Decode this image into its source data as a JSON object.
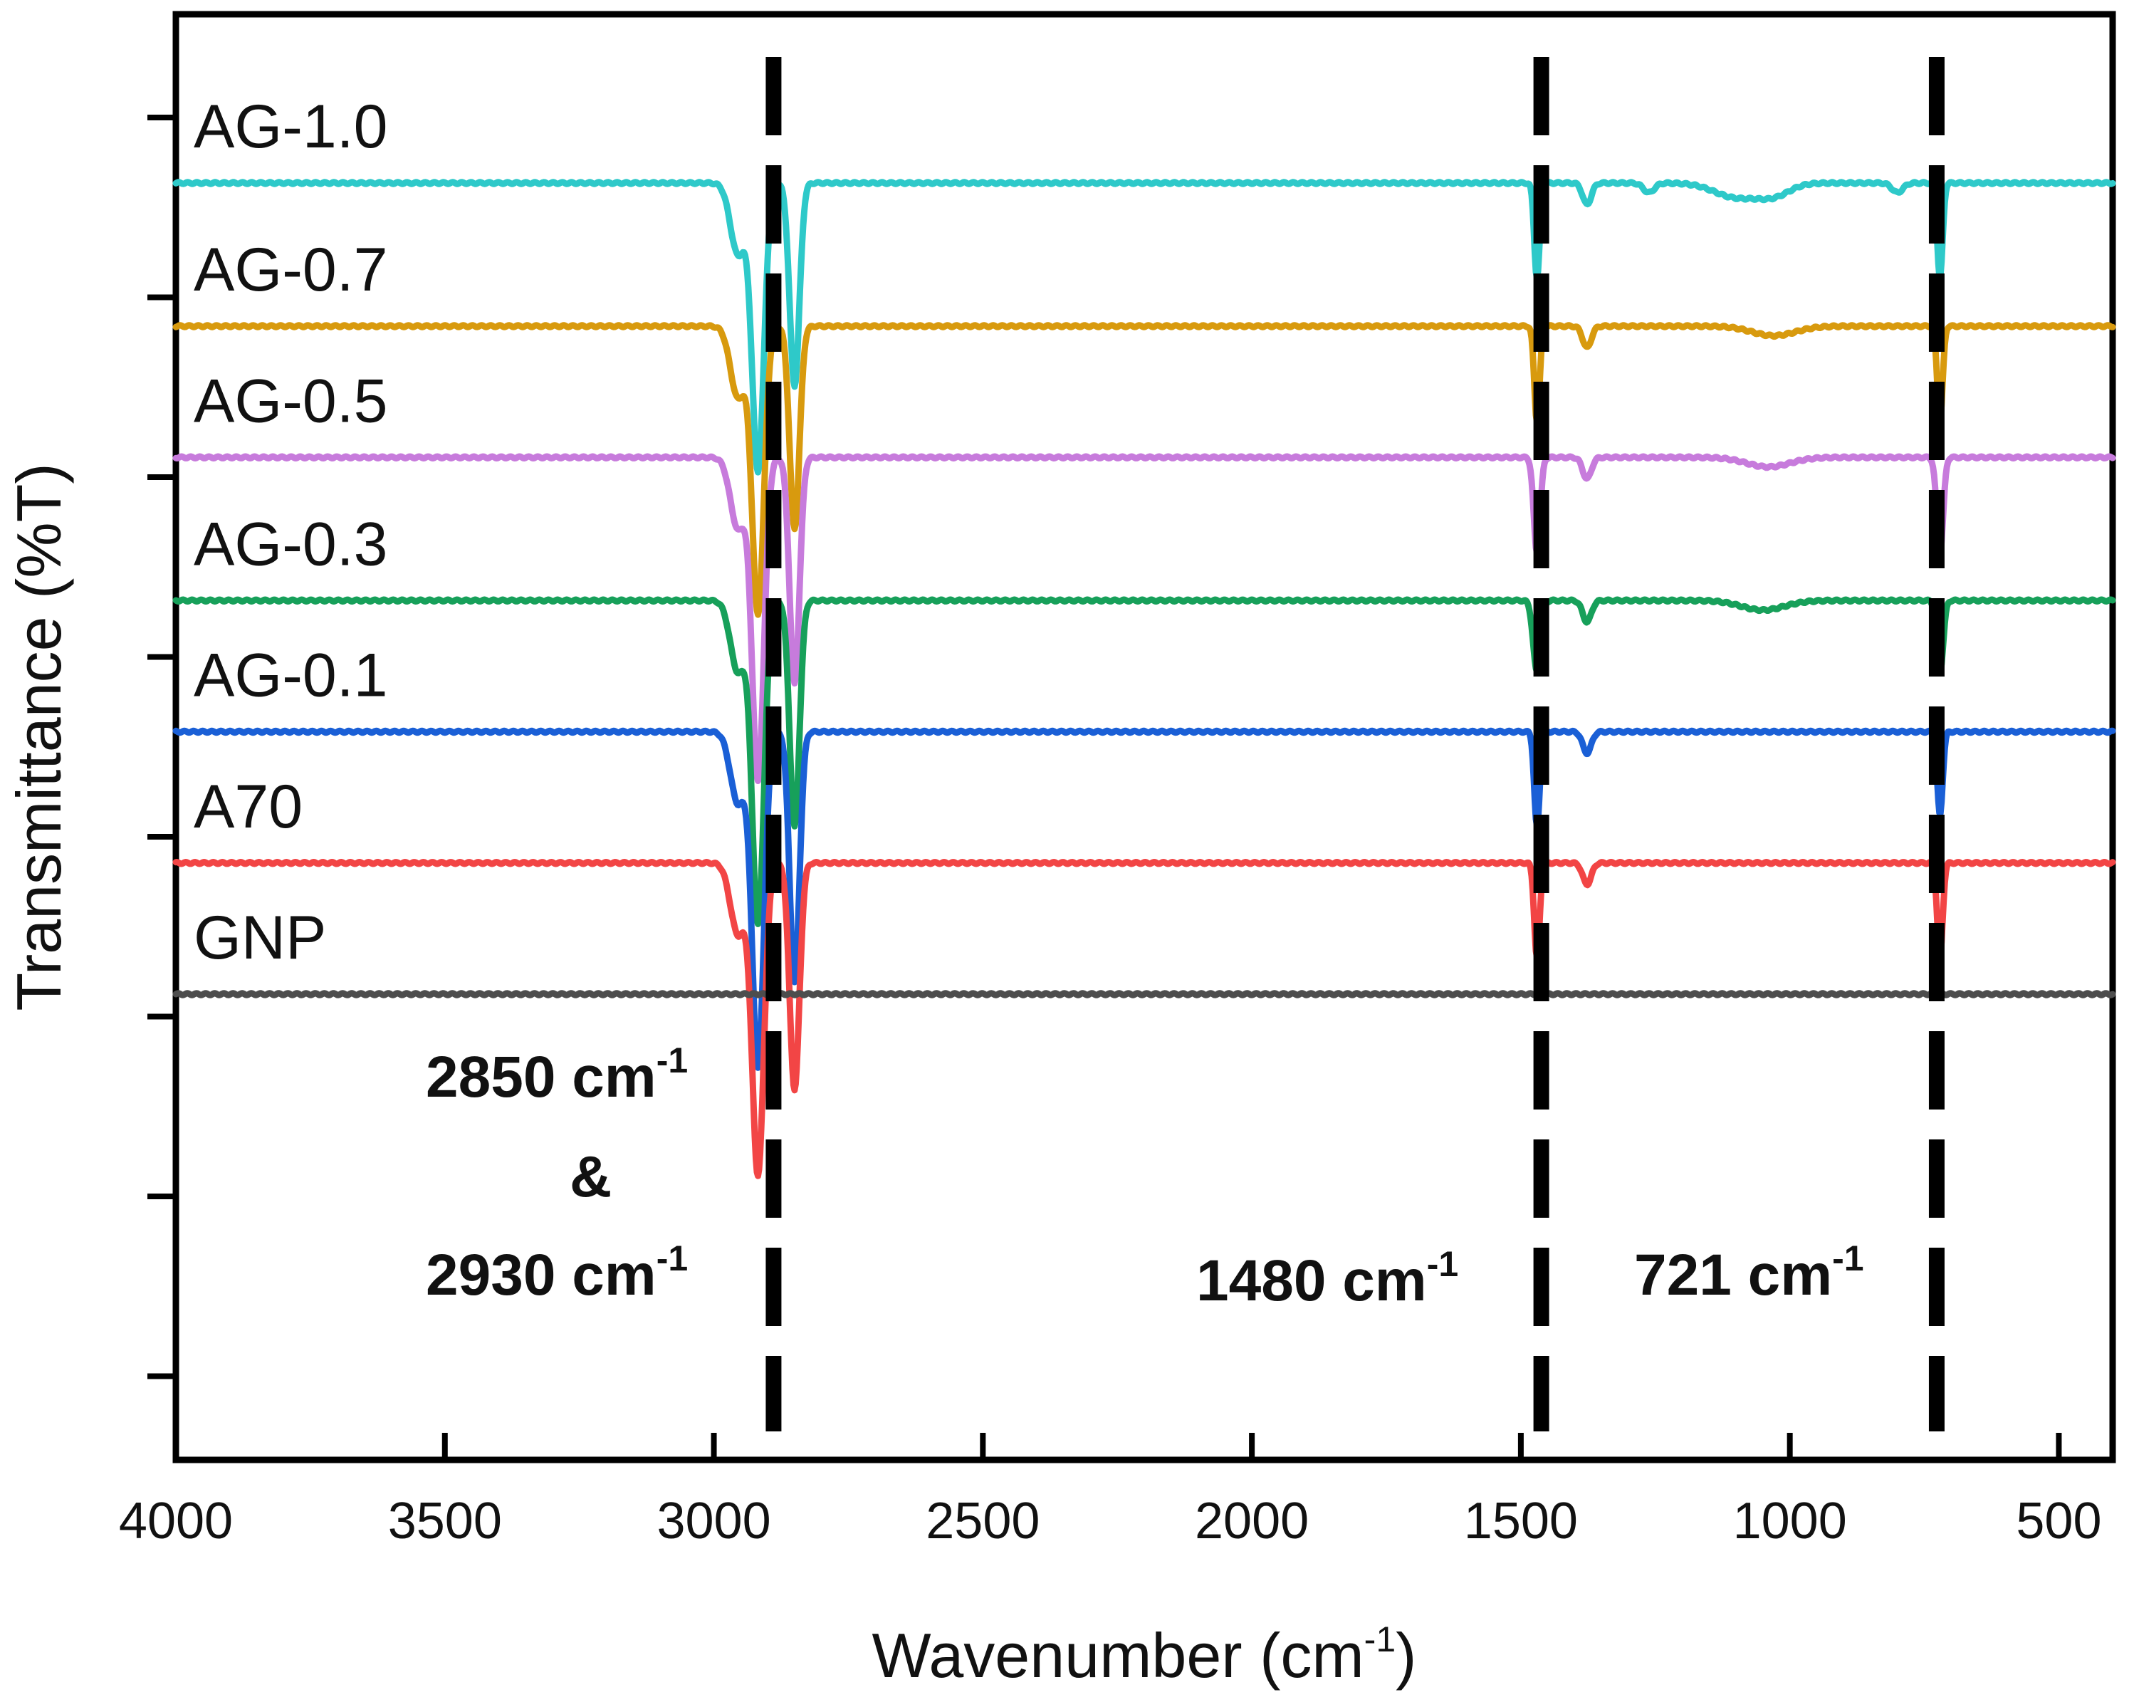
{
  "chart_data": {
    "type": "line",
    "title": "",
    "xlabel": "Wavenumber",
    "xlabel_unit": "(cm",
    "xlabel_unit_sup": "-1",
    "xlabel_unit_close": ")",
    "ylabel": "Transmittance (%T)",
    "xlim": [
      4000,
      400
    ],
    "x_reversed": true,
    "x_ticks": [
      4000,
      3500,
      3000,
      2500,
      2000,
      1500,
      1000,
      500
    ],
    "x_tick_labels": [
      "4000",
      "3500",
      "3000",
      "2500",
      "2000",
      "1500",
      "1000",
      "500"
    ],
    "y_tick_count": 8,
    "y_tick_labels_shown": false,
    "offset_units": "stacked, arbitrary %T (offset 0 = top of panel)",
    "series": [
      {
        "name": "AG-1.0",
        "color": "#2ec9c9",
        "baseline": 100,
        "peaks": [
          {
            "x": 2955,
            "depth": 6,
            "w": 14
          },
          {
            "x": 2918,
            "depth": 24,
            "w": 11
          },
          {
            "x": 2850,
            "depth": 17,
            "w": 9
          },
          {
            "x": 1470,
            "depth": 8,
            "w": 5
          },
          {
            "x": 1377,
            "depth": 1.8,
            "w": 8
          },
          {
            "x": 1262,
            "depth": 0.8,
            "w": 10
          },
          {
            "x": 1100,
            "depth": 1.2,
            "w": 40
          },
          {
            "x": 1030,
            "depth": 1.0,
            "w": 30
          },
          {
            "x": 800,
            "depth": 0.8,
            "w": 10
          },
          {
            "x": 721,
            "depth": 8,
            "w": 5
          }
        ]
      },
      {
        "name": "AG-0.7",
        "color": "#d89a0e",
        "baseline": 88,
        "peaks": [
          {
            "x": 2955,
            "depth": 6,
            "w": 14
          },
          {
            "x": 2918,
            "depth": 24,
            "w": 11
          },
          {
            "x": 2850,
            "depth": 17,
            "w": 9
          },
          {
            "x": 1470,
            "depth": 8,
            "w": 5
          },
          {
            "x": 1377,
            "depth": 1.8,
            "w": 8
          },
          {
            "x": 1030,
            "depth": 0.8,
            "w": 40
          },
          {
            "x": 721,
            "depth": 8,
            "w": 5
          }
        ]
      },
      {
        "name": "AG-0.5",
        "color": "#c77bdc",
        "baseline": 77,
        "peaks": [
          {
            "x": 2955,
            "depth": 6,
            "w": 14
          },
          {
            "x": 2918,
            "depth": 27,
            "w": 11
          },
          {
            "x": 2850,
            "depth": 19,
            "w": 9
          },
          {
            "x": 1470,
            "depth": 8,
            "w": 6
          },
          {
            "x": 1377,
            "depth": 1.8,
            "w": 8
          },
          {
            "x": 1040,
            "depth": 0.8,
            "w": 40
          },
          {
            "x": 721,
            "depth": 8,
            "w": 6
          }
        ]
      },
      {
        "name": "AG-0.3",
        "color": "#17a05a",
        "baseline": 65,
        "peaks": [
          {
            "x": 2955,
            "depth": 6,
            "w": 14
          },
          {
            "x": 2918,
            "depth": 27,
            "w": 11
          },
          {
            "x": 2850,
            "depth": 19,
            "w": 9
          },
          {
            "x": 1470,
            "depth": 6,
            "w": 7
          },
          {
            "x": 1377,
            "depth": 1.8,
            "w": 8
          },
          {
            "x": 1050,
            "depth": 0.8,
            "w": 40
          },
          {
            "x": 721,
            "depth": 6,
            "w": 6
          }
        ]
      },
      {
        "name": "AG-0.1",
        "color": "#1a5fd6",
        "baseline": 54,
        "peaks": [
          {
            "x": 2955,
            "depth": 6,
            "w": 14
          },
          {
            "x": 2918,
            "depth": 28,
            "w": 11
          },
          {
            "x": 2850,
            "depth": 21,
            "w": 9
          },
          {
            "x": 1470,
            "depth": 8,
            "w": 5
          },
          {
            "x": 1377,
            "depth": 1.8,
            "w": 8
          },
          {
            "x": 721,
            "depth": 7,
            "w": 5
          }
        ]
      },
      {
        "name": "A70",
        "color": "#f24545",
        "baseline": 43,
        "peaks": [
          {
            "x": 2955,
            "depth": 6,
            "w": 14
          },
          {
            "x": 2918,
            "depth": 26,
            "w": 11
          },
          {
            "x": 2850,
            "depth": 19,
            "w": 9
          },
          {
            "x": 1470,
            "depth": 8,
            "w": 5
          },
          {
            "x": 1377,
            "depth": 1.8,
            "w": 8
          },
          {
            "x": 721,
            "depth": 8,
            "w": 5
          }
        ]
      },
      {
        "name": "GNP",
        "color": "#4d4d4d",
        "baseline": 32,
        "peaks": []
      }
    ],
    "reference_lines": [
      {
        "x": 2889,
        "style": "dashed"
      },
      {
        "x": 1462,
        "style": "dashed"
      },
      {
        "x": 727,
        "style": "dashed"
      }
    ],
    "annotations": [
      {
        "id": "ann-2850",
        "text": "2850 cm",
        "sup": "-1"
      },
      {
        "id": "ann-amp",
        "text": "&",
        "sup": ""
      },
      {
        "id": "ann-2930",
        "text": "2930 cm",
        "sup": "-1"
      },
      {
        "id": "ann-1480",
        "text": "1480 cm",
        "sup": "-1"
      },
      {
        "id": "ann-721",
        "text": "721 cm",
        "sup": "-1"
      }
    ]
  }
}
